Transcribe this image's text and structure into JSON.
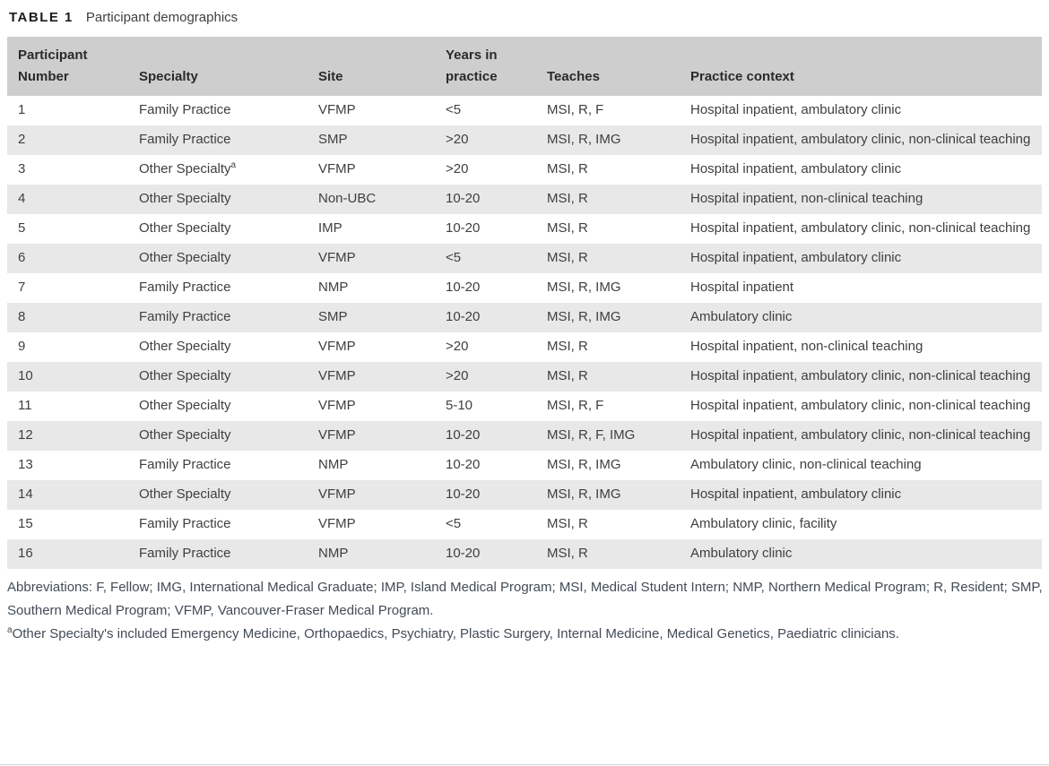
{
  "table": {
    "label": "TABLE 1",
    "caption": "Participant demographics",
    "columns": [
      {
        "label": "Participant Number"
      },
      {
        "label": "Specialty"
      },
      {
        "label": "Site"
      },
      {
        "label": "Years in practice"
      },
      {
        "label": "Teaches"
      },
      {
        "label": "Practice context"
      }
    ],
    "rows": [
      {
        "number": "1",
        "specialty": "Family Practice",
        "specialty_note": "",
        "site": "VFMP",
        "years": "<5",
        "teaches": "MSI, R, F",
        "context": "Hospital inpatient, ambulatory clinic"
      },
      {
        "number": "2",
        "specialty": "Family Practice",
        "specialty_note": "",
        "site": "SMP",
        "years": ">20",
        "teaches": "MSI, R, IMG",
        "context": "Hospital inpatient, ambulatory clinic, non-clinical teaching"
      },
      {
        "number": "3",
        "specialty": "Other Specialty",
        "specialty_note": "a",
        "site": "VFMP",
        "years": ">20",
        "teaches": "MSI, R",
        "context": "Hospital inpatient, ambulatory clinic"
      },
      {
        "number": "4",
        "specialty": "Other Specialty",
        "specialty_note": "",
        "site": "Non-UBC",
        "years": "10-20",
        "teaches": "MSI, R",
        "context": "Hospital inpatient, non-clinical teaching"
      },
      {
        "number": "5",
        "specialty": "Other Specialty",
        "specialty_note": "",
        "site": "IMP",
        "years": "10-20",
        "teaches": "MSI, R",
        "context": "Hospital inpatient, ambulatory clinic, non-clinical teaching"
      },
      {
        "number": "6",
        "specialty": "Other Specialty",
        "specialty_note": "",
        "site": "VFMP",
        "years": "<5",
        "teaches": "MSI, R",
        "context": "Hospital inpatient, ambulatory clinic"
      },
      {
        "number": "7",
        "specialty": "Family Practice",
        "specialty_note": "",
        "site": "NMP",
        "years": "10-20",
        "teaches": "MSI, R, IMG",
        "context": "Hospital inpatient"
      },
      {
        "number": "8",
        "specialty": "Family Practice",
        "specialty_note": "",
        "site": "SMP",
        "years": "10-20",
        "teaches": "MSI, R, IMG",
        "context": "Ambulatory clinic"
      },
      {
        "number": "9",
        "specialty": "Other Specialty",
        "specialty_note": "",
        "site": "VFMP",
        "years": ">20",
        "teaches": "MSI, R",
        "context": "Hospital inpatient, non-clinical teaching"
      },
      {
        "number": "10",
        "specialty": "Other Specialty",
        "specialty_note": "",
        "site": "VFMP",
        "years": ">20",
        "teaches": "MSI, R",
        "context": "Hospital inpatient, ambulatory clinic, non-clinical teaching"
      },
      {
        "number": "11",
        "specialty": "Other Specialty",
        "specialty_note": "",
        "site": "VFMP",
        "years": "5-10",
        "teaches": "MSI, R, F",
        "context": "Hospital inpatient, ambulatory clinic, non-clinical teaching"
      },
      {
        "number": "12",
        "specialty": "Other Specialty",
        "specialty_note": "",
        "site": "VFMP",
        "years": "10-20",
        "teaches": "MSI, R, F, IMG",
        "context": "Hospital inpatient, ambulatory clinic, non-clinical teaching"
      },
      {
        "number": "13",
        "specialty": "Family Practice",
        "specialty_note": "",
        "site": "NMP",
        "years": "10-20",
        "teaches": "MSI, R, IMG",
        "context": "Ambulatory clinic, non-clinical teaching"
      },
      {
        "number": "14",
        "specialty": "Other Specialty",
        "specialty_note": "",
        "site": "VFMP",
        "years": "10-20",
        "teaches": "MSI, R, IMG",
        "context": "Hospital inpatient, ambulatory clinic"
      },
      {
        "number": "15",
        "specialty": "Family Practice",
        "specialty_note": "",
        "site": "VFMP",
        "years": "<5",
        "teaches": "MSI, R",
        "context": "Ambulatory clinic, facility"
      },
      {
        "number": "16",
        "specialty": "Family Practice",
        "specialty_note": "",
        "site": "NMP",
        "years": "10-20",
        "teaches": "MSI, R",
        "context": "Ambulatory clinic"
      }
    ],
    "footnotes": {
      "abbreviations": "Abbreviations: F, Fellow; IMG, International Medical Graduate; IMP, Island Medical Program; MSI, Medical Student Intern; NMP, Northern Medical Program; R, Resident; SMP, Southern Medical Program; VFMP, Vancouver-Fraser Medical Program.",
      "footnote_a_marker": "a",
      "footnote_a": "Other Specialty's included Emergency Medicine, Orthopaedics, Psychiatry, Plastic Surgery, Internal Medicine, Medical Genetics, Paediatric clinicians."
    }
  },
  "colors": {
    "header_bg": "#cecece",
    "stripe_bg": "#e8e8e8",
    "title_text": "#1c1c1c",
    "body_text": "#3f3f3f",
    "footnote_text": "#414b57",
    "bottom_rule": "#ccd3da"
  }
}
